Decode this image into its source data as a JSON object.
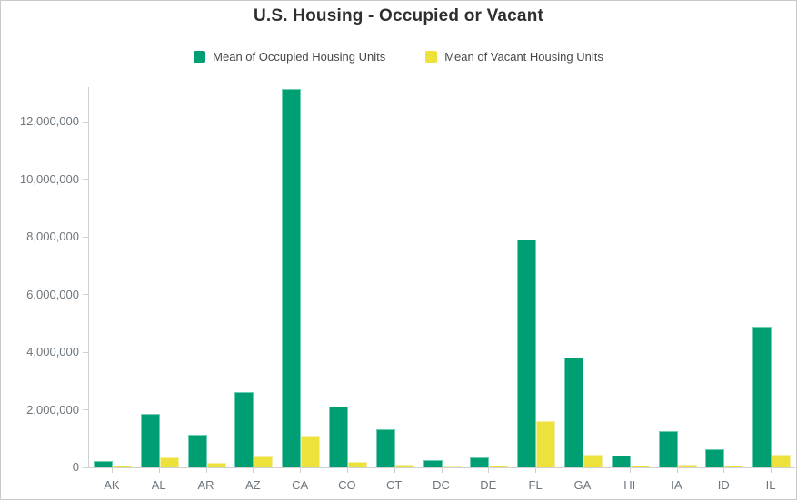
{
  "title": "U.S. Housing - Occupied or Vacant",
  "colors": {
    "occupied": "#009e73",
    "occupied_edge": "#6fcdb2",
    "vacant": "#ede23b",
    "vacant_edge": "#f5efa5",
    "axis": "#d0d0d0",
    "axis_text": "#6d767d",
    "title_text": "#2f2f2f",
    "frame_border": "#c9c9c9"
  },
  "chart_data": {
    "type": "bar",
    "title": "U.S. Housing - Occupied or Vacant",
    "xlabel": "",
    "ylabel": "",
    "grid": false,
    "legend_position": "top",
    "ylim": [
      0,
      13200000
    ],
    "ytick_step": 2000000,
    "yticks": [
      0,
      2000000,
      4000000,
      6000000,
      8000000,
      10000000,
      12000000
    ],
    "ytick_labels": [
      "0",
      "2,000,000",
      "4,000,000",
      "6,000,000",
      "8,000,000",
      "10,000,000",
      "12,000,000"
    ],
    "categories": [
      "AK",
      "AL",
      "AR",
      "AZ",
      "CA",
      "CO",
      "CT",
      "DC",
      "DE",
      "FL",
      "GA",
      "HI",
      "IA",
      "ID",
      "IL"
    ],
    "series": [
      {
        "name": "Mean of Occupied Housing Units",
        "color": "#009e73",
        "values": [
          230000,
          1860000,
          1120000,
          2610000,
          13130000,
          2100000,
          1330000,
          260000,
          350000,
          7920000,
          3800000,
          420000,
          1250000,
          620000,
          4870000
        ]
      },
      {
        "name": "Mean of Vacant Housing Units",
        "color": "#ede23b",
        "values": [
          60000,
          340000,
          160000,
          370000,
          1070000,
          180000,
          100000,
          30000,
          60000,
          1600000,
          450000,
          50000,
          110000,
          70000,
          450000
        ]
      }
    ]
  }
}
